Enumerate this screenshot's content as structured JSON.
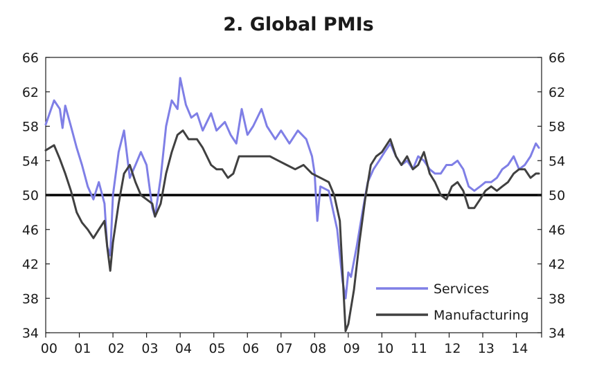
{
  "chart_data": {
    "type": "line",
    "title": "2. Global PMIs",
    "xlabel": "",
    "ylabel": "",
    "ylim": [
      34,
      66
    ],
    "yticks": [
      34,
      38,
      42,
      46,
      50,
      54,
      58,
      62,
      66
    ],
    "y_tick_labels": [
      "34",
      "38",
      "42",
      "46",
      "50",
      "54",
      "58",
      "62",
      "66"
    ],
    "x_tick_labels": [
      "00",
      "01",
      "02",
      "03",
      "04",
      "05",
      "06",
      "07",
      "08",
      "09",
      "10",
      "11",
      "12",
      "13",
      "14"
    ],
    "x_range": [
      2000.0,
      2014.75
    ],
    "reference_line": 50,
    "legend_position": "bottom-right",
    "grid": false,
    "series": [
      {
        "name": "Services",
        "color": "#7f7fe6",
        "points": [
          [
            2000.0,
            58.2
          ],
          [
            2000.25,
            61.0
          ],
          [
            2000.42,
            60.0
          ],
          [
            2000.5,
            57.8
          ],
          [
            2000.58,
            60.4
          ],
          [
            2000.75,
            58.0
          ],
          [
            2000.92,
            55.5
          ],
          [
            2001.08,
            53.5
          ],
          [
            2001.25,
            51.0
          ],
          [
            2001.42,
            49.5
          ],
          [
            2001.58,
            51.5
          ],
          [
            2001.75,
            49.0
          ],
          [
            2001.83,
            44.0
          ],
          [
            2001.92,
            43.0
          ],
          [
            2002.0,
            50.0
          ],
          [
            2002.17,
            55.0
          ],
          [
            2002.33,
            57.5
          ],
          [
            2002.5,
            52.0
          ],
          [
            2002.67,
            53.5
          ],
          [
            2002.83,
            55.0
          ],
          [
            2003.0,
            53.5
          ],
          [
            2003.17,
            48.5
          ],
          [
            2003.25,
            47.5
          ],
          [
            2003.42,
            52.0
          ],
          [
            2003.58,
            58.0
          ],
          [
            2003.75,
            61.0
          ],
          [
            2003.92,
            60.0
          ],
          [
            2004.0,
            63.6
          ],
          [
            2004.17,
            60.5
          ],
          [
            2004.33,
            59.0
          ],
          [
            2004.5,
            59.5
          ],
          [
            2004.67,
            57.5
          ],
          [
            2004.92,
            59.5
          ],
          [
            2005.08,
            57.5
          ],
          [
            2005.33,
            58.5
          ],
          [
            2005.5,
            57.0
          ],
          [
            2005.67,
            56.0
          ],
          [
            2005.83,
            60.0
          ],
          [
            2006.0,
            57.0
          ],
          [
            2006.17,
            58.0
          ],
          [
            2006.42,
            60.0
          ],
          [
            2006.58,
            58.0
          ],
          [
            2006.83,
            56.5
          ],
          [
            2007.0,
            57.5
          ],
          [
            2007.25,
            56.0
          ],
          [
            2007.5,
            57.5
          ],
          [
            2007.75,
            56.5
          ],
          [
            2007.92,
            54.5
          ],
          [
            2008.0,
            52.5
          ],
          [
            2008.08,
            47.0
          ],
          [
            2008.17,
            51.0
          ],
          [
            2008.42,
            50.5
          ],
          [
            2008.67,
            46.0
          ],
          [
            2008.83,
            40.0
          ],
          [
            2008.92,
            38.0
          ],
          [
            2009.0,
            41.0
          ],
          [
            2009.08,
            40.5
          ],
          [
            2009.25,
            44.0
          ],
          [
            2009.42,
            48.0
          ],
          [
            2009.58,
            51.5
          ],
          [
            2009.75,
            53.0
          ],
          [
            2009.92,
            54.0
          ],
          [
            2010.08,
            55.0
          ],
          [
            2010.25,
            56.0
          ],
          [
            2010.42,
            54.5
          ],
          [
            2010.58,
            53.5
          ],
          [
            2010.75,
            54.0
          ],
          [
            2010.92,
            53.0
          ],
          [
            2011.08,
            54.5
          ],
          [
            2011.25,
            54.0
          ],
          [
            2011.42,
            53.0
          ],
          [
            2011.58,
            52.5
          ],
          [
            2011.75,
            52.5
          ],
          [
            2011.92,
            53.5
          ],
          [
            2012.08,
            53.5
          ],
          [
            2012.25,
            54.0
          ],
          [
            2012.42,
            53.0
          ],
          [
            2012.58,
            51.0
          ],
          [
            2012.75,
            50.5
          ],
          [
            2012.92,
            51.0
          ],
          [
            2013.08,
            51.5
          ],
          [
            2013.25,
            51.5
          ],
          [
            2013.42,
            52.0
          ],
          [
            2013.58,
            53.0
          ],
          [
            2013.75,
            53.5
          ],
          [
            2013.92,
            54.5
          ],
          [
            2014.08,
            53.0
          ],
          [
            2014.25,
            53.5
          ],
          [
            2014.42,
            54.5
          ],
          [
            2014.58,
            56.0
          ],
          [
            2014.67,
            55.5
          ]
        ]
      },
      {
        "name": "Manufacturing",
        "color": "#404040",
        "points": [
          [
            2000.0,
            55.2
          ],
          [
            2000.25,
            55.8
          ],
          [
            2000.42,
            54.2
          ],
          [
            2000.58,
            52.5
          ],
          [
            2000.75,
            50.5
          ],
          [
            2000.92,
            48.0
          ],
          [
            2001.08,
            46.8
          ],
          [
            2001.25,
            46.0
          ],
          [
            2001.42,
            45.0
          ],
          [
            2001.58,
            46.0
          ],
          [
            2001.75,
            47.0
          ],
          [
            2001.83,
            44.0
          ],
          [
            2001.92,
            41.2
          ],
          [
            2002.0,
            44.5
          ],
          [
            2002.17,
            49.0
          ],
          [
            2002.33,
            52.5
          ],
          [
            2002.5,
            53.5
          ],
          [
            2002.67,
            51.5
          ],
          [
            2002.83,
            50.0
          ],
          [
            2003.0,
            49.5
          ],
          [
            2003.17,
            49.0
          ],
          [
            2003.25,
            47.5
          ],
          [
            2003.42,
            49.0
          ],
          [
            2003.58,
            52.5
          ],
          [
            2003.75,
            55.0
          ],
          [
            2003.92,
            57.0
          ],
          [
            2004.08,
            57.5
          ],
          [
            2004.25,
            56.5
          ],
          [
            2004.5,
            56.5
          ],
          [
            2004.67,
            55.5
          ],
          [
            2004.92,
            53.5
          ],
          [
            2005.08,
            53.0
          ],
          [
            2005.25,
            53.0
          ],
          [
            2005.42,
            52.0
          ],
          [
            2005.58,
            52.5
          ],
          [
            2005.75,
            54.5
          ],
          [
            2006.0,
            54.5
          ],
          [
            2006.17,
            54.5
          ],
          [
            2006.42,
            54.5
          ],
          [
            2006.67,
            54.5
          ],
          [
            2006.92,
            54.0
          ],
          [
            2007.17,
            53.5
          ],
          [
            2007.42,
            53.0
          ],
          [
            2007.67,
            53.5
          ],
          [
            2007.92,
            52.5
          ],
          [
            2008.17,
            52.0
          ],
          [
            2008.42,
            51.5
          ],
          [
            2008.58,
            50.0
          ],
          [
            2008.75,
            47.0
          ],
          [
            2008.83,
            41.0
          ],
          [
            2008.92,
            34.2
          ],
          [
            2009.0,
            35.0
          ],
          [
            2009.17,
            39.0
          ],
          [
            2009.33,
            44.5
          ],
          [
            2009.5,
            49.5
          ],
          [
            2009.67,
            53.5
          ],
          [
            2009.83,
            54.5
          ],
          [
            2010.0,
            55.0
          ],
          [
            2010.25,
            56.5
          ],
          [
            2010.42,
            54.5
          ],
          [
            2010.58,
            53.5
          ],
          [
            2010.75,
            54.5
          ],
          [
            2010.92,
            53.0
          ],
          [
            2011.08,
            53.5
          ],
          [
            2011.25,
            55.0
          ],
          [
            2011.42,
            52.5
          ],
          [
            2011.58,
            51.5
          ],
          [
            2011.75,
            50.0
          ],
          [
            2011.92,
            49.5
          ],
          [
            2012.08,
            51.0
          ],
          [
            2012.25,
            51.5
          ],
          [
            2012.42,
            50.5
          ],
          [
            2012.58,
            48.5
          ],
          [
            2012.75,
            48.5
          ],
          [
            2012.92,
            49.5
          ],
          [
            2013.08,
            50.5
          ],
          [
            2013.25,
            51.0
          ],
          [
            2013.42,
            50.5
          ],
          [
            2013.58,
            51.0
          ],
          [
            2013.75,
            51.5
          ],
          [
            2013.92,
            52.5
          ],
          [
            2014.08,
            53.0
          ],
          [
            2014.25,
            53.0
          ],
          [
            2014.42,
            52.0
          ],
          [
            2014.58,
            52.5
          ],
          [
            2014.67,
            52.5
          ]
        ]
      }
    ]
  }
}
